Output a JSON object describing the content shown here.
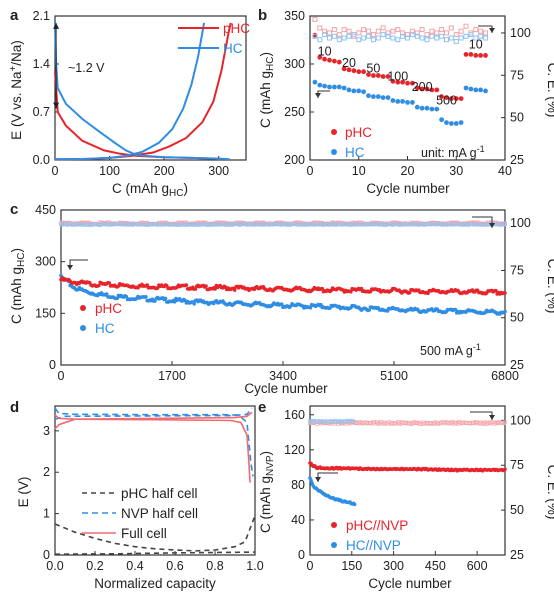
{
  "colors": {
    "red": "#e8242b",
    "blue": "#2f8de4",
    "red_light": "#f4a3a8",
    "blue_light": "#8fc3f2",
    "dark": "#444444",
    "axis": "#333333"
  },
  "chart_data": [
    {
      "panel": "a",
      "type": "line",
      "xlabel": "C (mAh g",
      "xlabel_sub": "HC",
      "xlabel_end": ")",
      "ylabel": "E (V vs. Na",
      "ylabel_sup": "+",
      "ylabel_end": "/Na)",
      "xlim": [
        0,
        350
      ],
      "ylim": [
        0,
        2.1
      ],
      "xticks": [
        0,
        100,
        200,
        300
      ],
      "yticks": [
        0.0,
        0.7,
        1.4,
        2.1
      ],
      "annotation": "~1.2 V",
      "series": [
        {
          "name": "pHC",
          "color": "#e8242b",
          "discharge": [
            [
              0,
              1.3
            ],
            [
              5,
              0.7
            ],
            [
              20,
              0.5
            ],
            [
              50,
              0.28
            ],
            [
              90,
              0.14
            ],
            [
              120,
              0.09
            ],
            [
              150,
              0.06
            ],
            [
              200,
              0.04
            ],
            [
              250,
              0.03
            ],
            [
              290,
              0.02
            ],
            [
              305,
              0.01
            ]
          ],
          "charge": [
            [
              0,
              0.01
            ],
            [
              60,
              0.015
            ],
            [
              100,
              0.03
            ],
            [
              140,
              0.06
            ],
            [
              180,
              0.11
            ],
            [
              210,
              0.2
            ],
            [
              240,
              0.32
            ],
            [
              270,
              0.55
            ],
            [
              290,
              0.85
            ],
            [
              305,
              1.3
            ],
            [
              318,
              1.85
            ],
            [
              322,
              2.0
            ]
          ]
        },
        {
          "name": "HC",
          "color": "#2f8de4",
          "discharge": [
            [
              0,
              2.02
            ],
            [
              2,
              1.4
            ],
            [
              5,
              1.05
            ],
            [
              20,
              0.82
            ],
            [
              50,
              0.6
            ],
            [
              80,
              0.42
            ],
            [
              110,
              0.25
            ],
            [
              130,
              0.14
            ],
            [
              150,
              0.07
            ],
            [
              200,
              0.04
            ],
            [
              250,
              0.03
            ],
            [
              300,
              0.02
            ],
            [
              320,
              0.01
            ]
          ],
          "charge": [
            [
              0,
              0.01
            ],
            [
              50,
              0.015
            ],
            [
              100,
              0.03
            ],
            [
              130,
              0.06
            ],
            [
              160,
              0.12
            ],
            [
              190,
              0.25
            ],
            [
              215,
              0.45
            ],
            [
              235,
              0.75
            ],
            [
              250,
              1.1
            ],
            [
              262,
              1.5
            ],
            [
              270,
              1.85
            ],
            [
              273,
              2.0
            ]
          ]
        }
      ]
    },
    {
      "panel": "b",
      "type": "scatter",
      "xlabel": "Cycle number",
      "ylabel": "C (mAh g",
      "ylabel_sub": "HC",
      "ylabel_end": ")",
      "ylabel_right": "C. E. (%)",
      "xlim": [
        0,
        40
      ],
      "ylim": [
        200,
        350
      ],
      "ylim_right": [
        25,
        110
      ],
      "xticks": [
        0,
        10,
        20,
        30,
        40
      ],
      "yticks": [
        200,
        250,
        300,
        350
      ],
      "yticks_right": [
        25,
        50,
        75,
        100
      ],
      "rate_labels": [
        {
          "text": "10",
          "x": 3,
          "y": 309
        },
        {
          "text": "20",
          "x": 8,
          "y": 297
        },
        {
          "text": "50",
          "x": 13,
          "y": 291
        },
        {
          "text": "100",
          "x": 18,
          "y": 283
        },
        {
          "text": "200",
          "x": 23,
          "y": 272
        },
        {
          "text": "500",
          "x": 28,
          "y": 258
        },
        {
          "text": "10",
          "x": 34,
          "y": 316
        }
      ],
      "unit_text": "unit: mA g",
      "unit_sup": "-1",
      "series": [
        {
          "name": "pHC",
          "color": "#e8242b",
          "y": [
            330,
            307,
            305,
            304,
            303,
            302,
            295,
            294,
            293,
            292,
            292,
            289,
            288,
            288,
            287,
            287,
            282,
            281,
            281,
            280,
            280,
            275,
            274,
            274,
            273,
            273,
            266,
            265,
            264,
            264,
            264,
            310,
            310,
            309,
            309,
            309
          ]
        },
        {
          "name": "HC",
          "color": "#2f8de4",
          "y": [
            281,
            278,
            277,
            276,
            276,
            276,
            275,
            273,
            272,
            272,
            271,
            267,
            266,
            266,
            265,
            265,
            262,
            261,
            261,
            260,
            260,
            255,
            254,
            254,
            253,
            253,
            242,
            239,
            238,
            238,
            239,
            275,
            274,
            273,
            273,
            272
          ]
        },
        {
          "name": "pHC CE",
          "color": "#f4a3a8",
          "y": [
            108,
            103,
            101,
            100,
            102,
            99,
            102,
            101,
            98,
            100,
            102,
            101,
            99,
            101,
            103,
            100,
            101,
            102,
            100,
            99,
            101,
            100,
            102,
            99,
            101,
            100,
            102,
            100,
            103,
            99,
            101,
            104,
            100,
            102,
            101,
            100
          ]
        },
        {
          "name": "HC CE",
          "color": "#8fc3f2",
          "y": [
            98,
            96,
            99,
            97,
            98,
            96,
            97,
            98,
            99,
            96,
            97,
            98,
            96,
            97,
            99,
            98,
            97,
            96,
            98,
            97,
            99,
            98,
            97,
            96,
            98,
            97,
            98,
            96,
            97,
            95,
            97,
            98,
            99,
            97,
            98,
            97
          ]
        }
      ]
    },
    {
      "panel": "c",
      "type": "scatter",
      "xlabel": "Cycle number",
      "ylabel": "C (mAh g",
      "ylabel_sub": "HC",
      "ylabel_end": ")",
      "ylabel_right": "C. E. (%)",
      "xlim": [
        0,
        6800
      ],
      "ylim": [
        0,
        450
      ],
      "ylim_right": [
        25,
        107
      ],
      "xticks": [
        0,
        1700,
        3400,
        5100,
        6800
      ],
      "yticks": [
        0,
        150,
        300,
        450
      ],
      "yticks_right": [
        25,
        50,
        75,
        100
      ],
      "rate_text": "500 mA g",
      "rate_sup": "-1",
      "series": [
        {
          "name": "pHC",
          "color": "#e8242b",
          "x": [
            0,
            100,
            200,
            400,
            600,
            800,
            1000,
            1500,
            2000,
            2500,
            3000,
            3500,
            4000,
            4500,
            5000,
            5500,
            6000,
            6500,
            6800
          ],
          "y": [
            248,
            245,
            240,
            236,
            234,
            232,
            230,
            228,
            226,
            224,
            222,
            220,
            218,
            217,
            216,
            214,
            213,
            211,
            210
          ]
        },
        {
          "name": "HC",
          "color": "#2f8de4",
          "x": [
            0,
            100,
            200,
            400,
            600,
            800,
            1000,
            1500,
            2000,
            2500,
            3000,
            3500,
            4000,
            4500,
            5000,
            5500,
            6000,
            6500,
            6800
          ],
          "y": [
            255,
            240,
            225,
            212,
            205,
            200,
            196,
            190,
            184,
            180,
            176,
            172,
            170,
            166,
            162,
            158,
            156,
            154,
            153
          ]
        },
        {
          "name": "pHC CE",
          "color": "#f4a3a8",
          "ce": 100
        },
        {
          "name": "HC CE",
          "color": "#8fc3f2",
          "ce": 99.6
        }
      ]
    },
    {
      "panel": "d",
      "type": "line",
      "xlabel": "Normalized capacity",
      "ylabel": "E (V)",
      "xlim": [
        0,
        1.0
      ],
      "ylim": [
        0,
        3.6
      ],
      "xticks": [
        0.0,
        0.2,
        0.4,
        0.6,
        0.8,
        1.0
      ],
      "yticks": [
        0,
        1,
        2,
        3
      ],
      "series": [
        {
          "name": "pHC half cell",
          "color": "#444444",
          "dash": "5,4",
          "discharge": [
            [
              0,
              0.75
            ],
            [
              0.1,
              0.55
            ],
            [
              0.2,
              0.4
            ],
            [
              0.3,
              0.28
            ],
            [
              0.4,
              0.2
            ],
            [
              0.5,
              0.15
            ],
            [
              0.6,
              0.12
            ],
            [
              0.7,
              0.1
            ],
            [
              0.8,
              0.12
            ],
            [
              0.9,
              0.2
            ],
            [
              0.95,
              0.32
            ],
            [
              1.0,
              0.95
            ]
          ],
          "charge": [
            [
              0,
              0.02
            ],
            [
              0.3,
              0.03
            ],
            [
              0.6,
              0.05
            ],
            [
              0.8,
              0.06
            ],
            [
              1.0,
              0.07
            ]
          ]
        },
        {
          "name": "NVP half cell",
          "color": "#2f8de4",
          "dash": "6,4",
          "discharge": [
            [
              0.0,
              3.55
            ],
            [
              0.02,
              3.42
            ],
            [
              0.1,
              3.4
            ],
            [
              0.5,
              3.39
            ],
            [
              0.85,
              3.39
            ],
            [
              0.92,
              3.38
            ],
            [
              0.96,
              3.2
            ],
            [
              0.98,
              2.2
            ],
            [
              0.99,
              1.9
            ]
          ],
          "charge": [
            [
              0.0,
              3.28
            ],
            [
              0.05,
              3.35
            ],
            [
              0.5,
              3.36
            ],
            [
              0.9,
              3.37
            ],
            [
              0.96,
              3.4
            ],
            [
              0.985,
              3.55
            ]
          ]
        },
        {
          "name": "Full cell",
          "color": "#f06a72",
          "dash": "",
          "discharge": [
            [
              0.0,
              3.38
            ],
            [
              0.02,
              3.3
            ],
            [
              0.1,
              3.28
            ],
            [
              0.5,
              3.27
            ],
            [
              0.88,
              3.25
            ],
            [
              0.93,
              3.2
            ],
            [
              0.96,
              2.9
            ],
            [
              0.97,
              2.2
            ],
            [
              0.975,
              1.75
            ]
          ],
          "charge": [
            [
              0.0,
              3.05
            ],
            [
              0.02,
              3.15
            ],
            [
              0.1,
              3.28
            ],
            [
              0.5,
              3.3
            ],
            [
              0.9,
              3.32
            ],
            [
              0.96,
              3.35
            ],
            [
              0.985,
              3.45
            ]
          ]
        }
      ]
    },
    {
      "panel": "e",
      "type": "scatter",
      "xlabel": "Cycle number",
      "ylabel": "C (mAh g",
      "ylabel_sub": "NVP",
      "ylabel_end": ")",
      "ylabel_right": "C. E. (%)",
      "xlim": [
        0,
        700
      ],
      "ylim": [
        0,
        170
      ],
      "ylim_right": [
        25,
        108
      ],
      "xticks": [
        0,
        150,
        300,
        450,
        600
      ],
      "yticks": [
        0,
        40,
        80,
        120,
        160
      ],
      "yticks_right": [
        25,
        50,
        75,
        100
      ],
      "series": [
        {
          "name": "pHC//NVP",
          "color": "#e8242b",
          "x": [
            0,
            20,
            50,
            100,
            150,
            200,
            300,
            400,
            500,
            600,
            700
          ],
          "y": [
            105,
            100,
            99,
            99,
            99,
            98,
            98,
            98,
            97,
            97,
            97
          ]
        },
        {
          "name": "HC//NVP",
          "color": "#2f8de4",
          "x": [
            0,
            10,
            20,
            40,
            60,
            80,
            100,
            120,
            140,
            160
          ],
          "y": [
            88,
            80,
            76,
            72,
            68,
            65,
            63,
            61,
            60,
            58
          ]
        },
        {
          "name": "pHC CE",
          "color": "#f4a3a8",
          "ce": 98.5
        },
        {
          "name": "HC CE",
          "color": "#8fc3f2",
          "ce": 99.5
        }
      ]
    }
  ],
  "panels": {
    "a": {
      "letter": "a",
      "legend": [
        "pHC",
        "HC"
      ]
    },
    "b": {
      "letter": "b",
      "legend": [
        "pHC",
        "HC"
      ]
    },
    "c": {
      "letter": "c",
      "legend": [
        "pHC",
        "HC"
      ]
    },
    "d": {
      "letter": "d",
      "legend": [
        "pHC half cell",
        "NVP half cell",
        "Full cell"
      ]
    },
    "e": {
      "letter": "e",
      "legend": [
        "pHC//NVP",
        "HC//NVP"
      ]
    }
  }
}
